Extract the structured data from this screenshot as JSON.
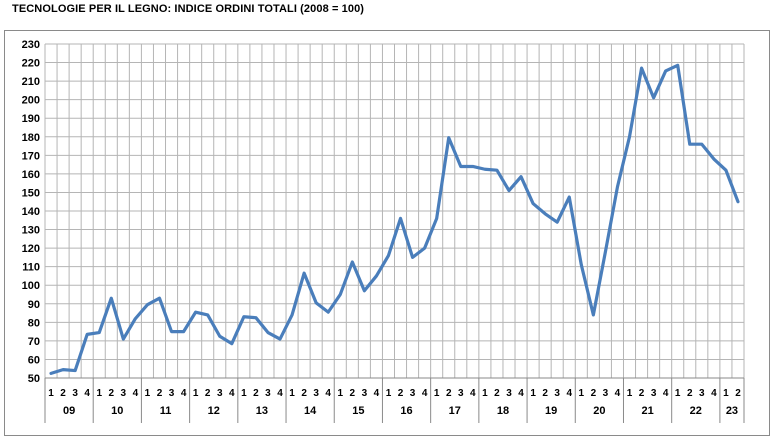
{
  "chart_data": {
    "type": "line",
    "title": "TECNOLOGIE PER IL LEGNO: INDICE ORDINI TOTALI (2008 = 100)",
    "xlabel": "",
    "ylabel": "",
    "ylim": [
      50,
      230
    ],
    "ytick_step": 10,
    "grid": true,
    "legend": "none",
    "color": "#4a7ebb",
    "quarters": [
      "1",
      "2",
      "3",
      "4"
    ],
    "years": [
      "09",
      "10",
      "11",
      "12",
      "13",
      "14",
      "15",
      "16",
      "17",
      "18",
      "19",
      "20",
      "21",
      "22",
      "23"
    ],
    "quarters_last_year": [
      "1",
      "2"
    ],
    "series": [
      {
        "values": [
          52.5,
          54.5,
          54,
          73.5,
          74.5,
          93,
          71,
          82,
          89.5,
          93,
          75,
          75,
          85.5,
          84,
          72.5,
          68.5,
          83,
          82.5,
          74.5,
          71,
          84,
          106.5,
          90.5,
          85.5,
          95,
          112.5,
          97,
          105,
          116,
          136,
          115,
          120,
          136,
          179.5,
          164,
          164,
          162.5,
          162,
          151,
          158.5,
          144,
          138.5,
          134,
          147.5,
          111,
          84,
          118,
          153,
          180,
          217,
          201,
          215.5,
          218.5,
          176,
          176,
          168,
          162,
          145
        ]
      }
    ]
  }
}
